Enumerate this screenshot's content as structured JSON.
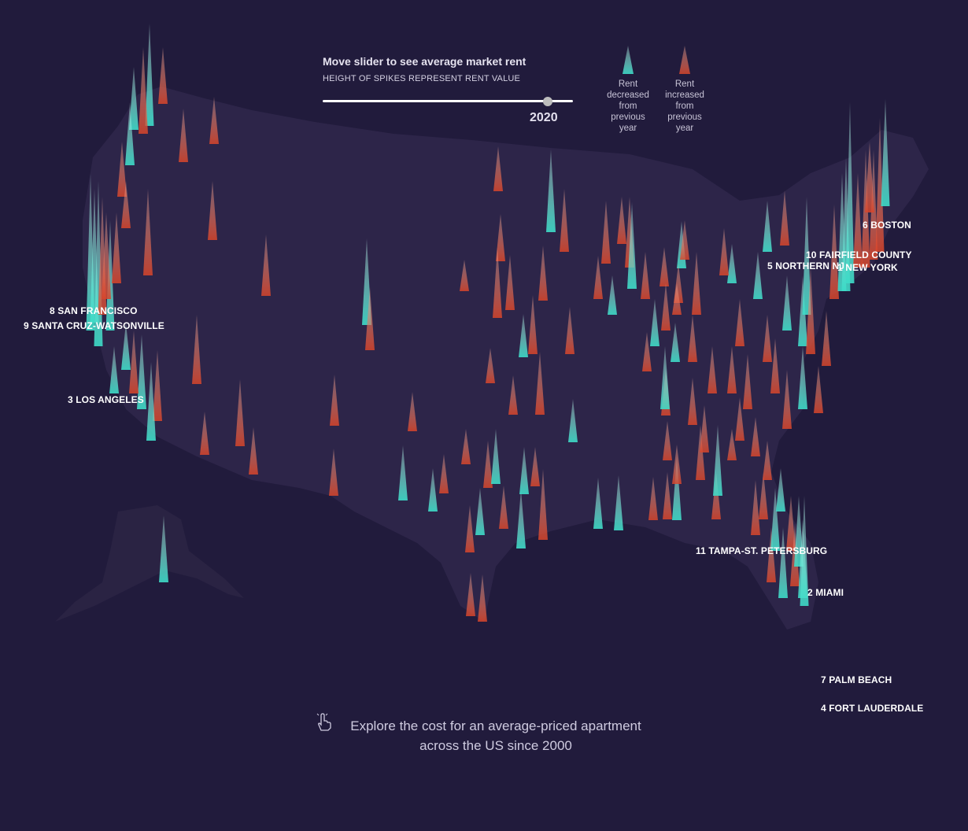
{
  "slider": {
    "title": "Move slider to see average market rent",
    "subtitle": "HEIGHT OF SPIKES REPRESENT RENT VALUE",
    "year": "2020",
    "position_fraction": 0.9
  },
  "legend": [
    {
      "id": "decreased",
      "text": "Rent decreased from previous year",
      "color": "#3ddcc8"
    },
    {
      "id": "increased",
      "text": "Rent increased from previous year",
      "color": "#e8502d"
    }
  ],
  "labels": [
    "6 BOSTON",
    "10 FAIRFIELD COUNTY",
    "5 NORTHERN NJ",
    "1 NEW YORK",
    "8 SAN FRANCISCO",
    "9 SANTA CRUZ-WATSONVILLE",
    "3 LOS ANGELES",
    "11 TAMPA-ST. PETERSBURG",
    "2 MIAMI",
    "7 PALM BEACH",
    "4 FORT LAUDERDALE"
  ],
  "explore": {
    "icon": "hand-pointer-icon",
    "line1": "Explore the cost for an average-priced apartment",
    "line2": "across the US since 2000"
  },
  "colors": {
    "background": "#211b3c",
    "land": "#2d2549",
    "decreased": "#3ddcc8",
    "increased": "#e8502d"
  }
}
